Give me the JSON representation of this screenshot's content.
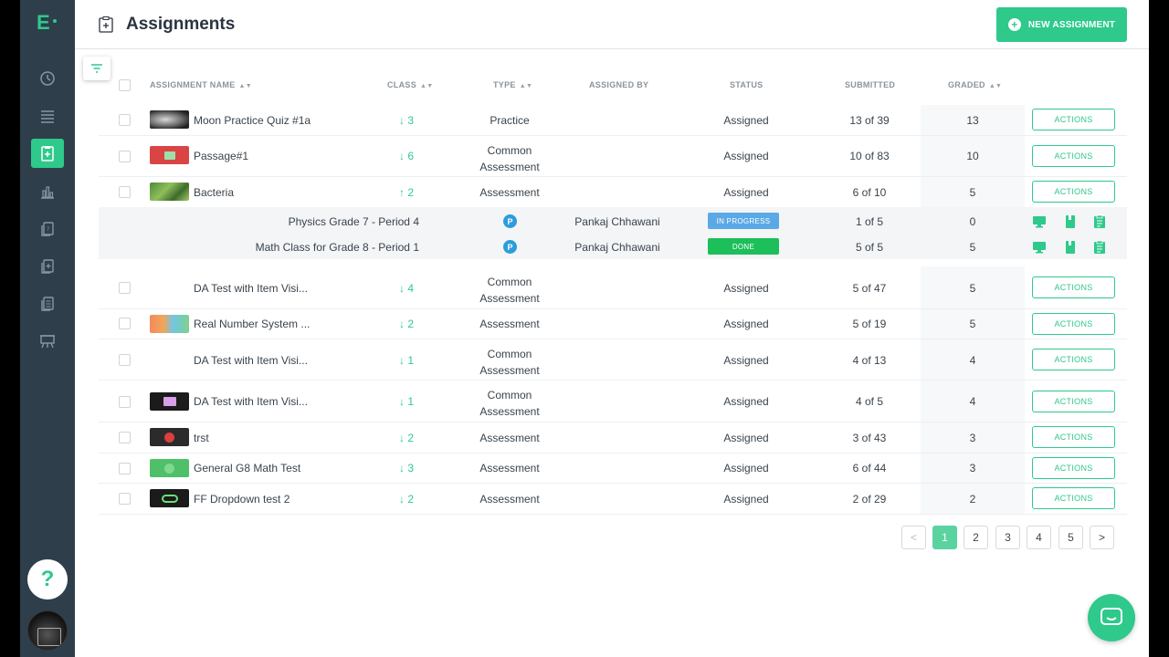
{
  "app": {
    "logo": "E"
  },
  "header": {
    "title": "Assignments",
    "new_button": "NEW ASSIGNMENT"
  },
  "columns": {
    "name": "ASSIGNMENT NAME",
    "class": "CLASS",
    "type": "TYPE",
    "assigned_by": "ASSIGNED BY",
    "status": "STATUS",
    "submitted": "SUBMITTED",
    "graded": "GRADED"
  },
  "rows": [
    {
      "name": "Moon Practice Quiz #1a",
      "class": "3",
      "arrow": "↓",
      "type1": "Practice",
      "type2": "",
      "status": "Assigned",
      "submitted": "13 of 39",
      "graded": "13",
      "action": "ACTIONS",
      "thumb": "moon"
    },
    {
      "name": "Passage#1",
      "class": "6",
      "arrow": "↓",
      "type1": "Common",
      "type2": "Assessment",
      "status": "Assigned",
      "submitted": "10 of 83",
      "graded": "10",
      "action": "ACTIONS",
      "thumb": "passage"
    },
    {
      "name": "Bacteria",
      "class": "2",
      "arrow": "↑",
      "type1": "Assessment",
      "type2": "",
      "status": "Assigned",
      "submitted": "6 of 10",
      "graded": "5",
      "action": "ACTIONS",
      "thumb": "bacteria"
    },
    {
      "name": "DA Test with Item Visi...",
      "class": "4",
      "arrow": "↓",
      "type1": "Common",
      "type2": "Assessment",
      "status": "Assigned",
      "submitted": "5 of 47",
      "graded": "5",
      "action": "ACTIONS",
      "thumb": ""
    },
    {
      "name": "Real Number System ...",
      "class": "2",
      "arrow": "↓",
      "type1": "Assessment",
      "type2": "",
      "status": "Assigned",
      "submitted": "5 of 19",
      "graded": "5",
      "action": "ACTIONS",
      "thumb": "realnum"
    },
    {
      "name": "DA Test with Item Visi...",
      "class": "1",
      "arrow": "↓",
      "type1": "Common",
      "type2": "Assessment",
      "status": "Assigned",
      "submitted": "4 of 13",
      "graded": "4",
      "action": "ACTIONS",
      "thumb": ""
    },
    {
      "name": "DA Test with Item Visi...",
      "class": "1",
      "arrow": "↓",
      "type1": "Common",
      "type2": "Assessment",
      "status": "Assigned",
      "submitted": "4 of 5",
      "graded": "4",
      "action": "ACTIONS",
      "thumb": "book"
    },
    {
      "name": "trst",
      "class": "2",
      "arrow": "↓",
      "type1": "Assessment",
      "type2": "",
      "status": "Assigned",
      "submitted": "3 of 43",
      "graded": "3",
      "action": "ACTIONS",
      "thumb": "trst"
    },
    {
      "name": "General G8 Math Test",
      "class": "3",
      "arrow": "↓",
      "type1": "Assessment",
      "type2": "",
      "status": "Assigned",
      "submitted": "6 of 44",
      "graded": "3",
      "action": "ACTIONS",
      "thumb": "general"
    },
    {
      "name": "FF Dropdown test 2",
      "class": "2",
      "arrow": "↓",
      "type1": "Assessment",
      "type2": "",
      "status": "Assigned",
      "submitted": "2 of 29",
      "graded": "2",
      "action": "ACTIONS",
      "thumb": "ff"
    }
  ],
  "subrows": [
    {
      "class_name": "Physics Grade 7 - Period 4",
      "type_badge": "P",
      "assigned_by": "Pankaj Chhawani",
      "status": "IN PROGRESS",
      "status_color": "#5aa9e6",
      "submitted": "1 of 5",
      "graded": "0"
    },
    {
      "class_name": "Math Class for Grade 8 - Period 1",
      "type_badge": "P",
      "assigned_by": "Pankaj Chhawani",
      "status": "DONE",
      "status_color": "#1dbf5a",
      "submitted": "5 of 5",
      "graded": "5"
    }
  ],
  "pagination": {
    "prev": "<",
    "pages": [
      "1",
      "2",
      "3",
      "4",
      "5"
    ],
    "next": ">",
    "current": "1"
  },
  "help": {
    "label": "?"
  },
  "colors": {
    "accent": "#2ec98b",
    "sidebar": "#2f3e4b"
  }
}
